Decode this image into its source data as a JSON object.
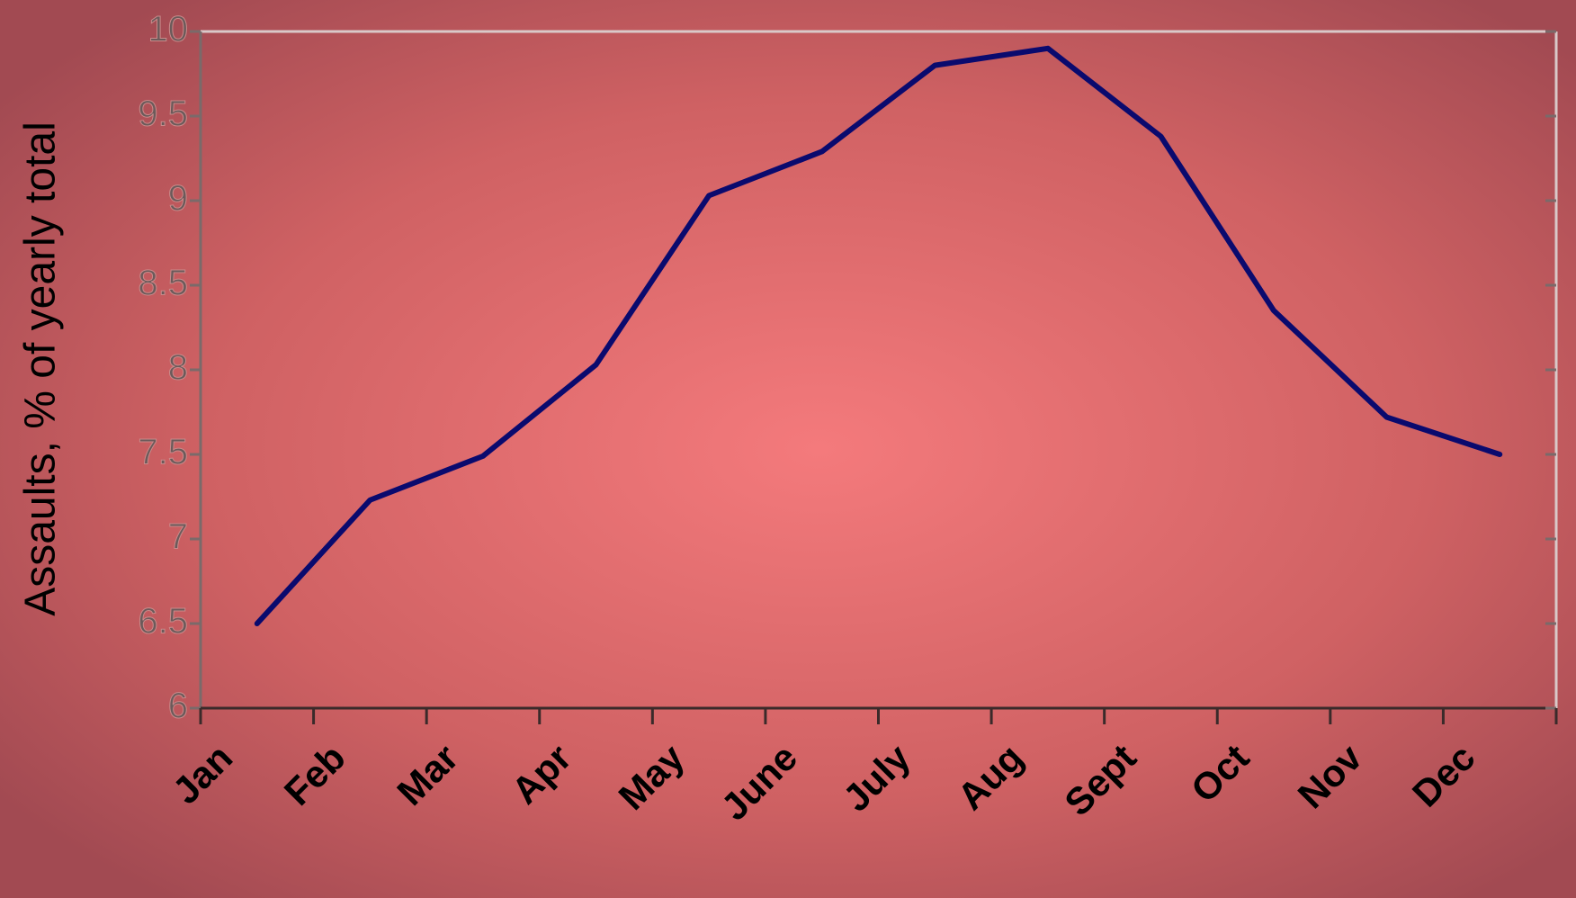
{
  "chart_data": {
    "type": "line",
    "y_label": "Assaults, % of yearly total",
    "categories": [
      "Jan",
      "Feb",
      "Mar",
      "Apr",
      "May",
      "June",
      "July",
      "Aug",
      "Sept",
      "Oct",
      "Nov",
      "Dec"
    ],
    "series": [
      {
        "color": "#0a0a6e",
        "values": [
          6.5,
          7.23,
          7.49,
          8.03,
          9.03,
          9.29,
          9.8,
          9.9,
          9.38,
          8.35,
          7.72,
          7.5
        ]
      }
    ],
    "ylim": [
      6,
      10
    ],
    "yticks": [
      6,
      6.5,
      7,
      7.5,
      8,
      8.5,
      9,
      9.5,
      10
    ],
    "grid": false
  }
}
